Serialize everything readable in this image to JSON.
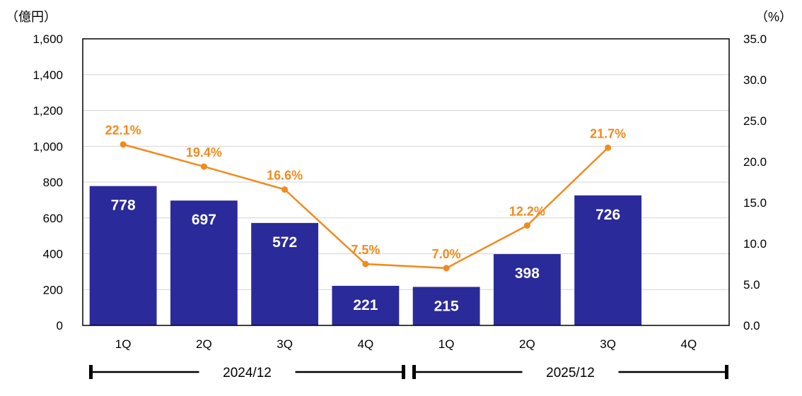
{
  "chart_data": {
    "type": "bar",
    "categories": [
      "1Q",
      "2Q",
      "3Q",
      "4Q",
      "1Q",
      "2Q",
      "3Q",
      "4Q"
    ],
    "periods": [
      {
        "label": "2024/12",
        "start": 0,
        "end": 3
      },
      {
        "label": "2025/12",
        "start": 4,
        "end": 7
      }
    ],
    "series": [
      {
        "type": "bar",
        "values": [
          778,
          697,
          572,
          221,
          215,
          398,
          726,
          null
        ],
        "axis": "left",
        "color": "#2b2a9a"
      },
      {
        "type": "line",
        "values": [
          22.1,
          19.4,
          16.6,
          7.5,
          7.0,
          12.2,
          21.7,
          null
        ],
        "axis": "right",
        "color": "#f28a1c",
        "label_suffix": "%"
      }
    ],
    "y_left": {
      "unit_label": "（億円）",
      "ticks": [
        "0",
        "200",
        "400",
        "600",
        "800",
        "1,000",
        "1,200",
        "1,400",
        "1,600"
      ],
      "ylim": [
        0,
        1600
      ]
    },
    "y_right": {
      "unit_label": "（%）",
      "ticks": [
        "0.0",
        "5.0",
        "10.0",
        "15.0",
        "20.0",
        "25.0",
        "30.0",
        "35.0"
      ],
      "ylim": [
        0,
        35
      ]
    },
    "grid": true
  }
}
